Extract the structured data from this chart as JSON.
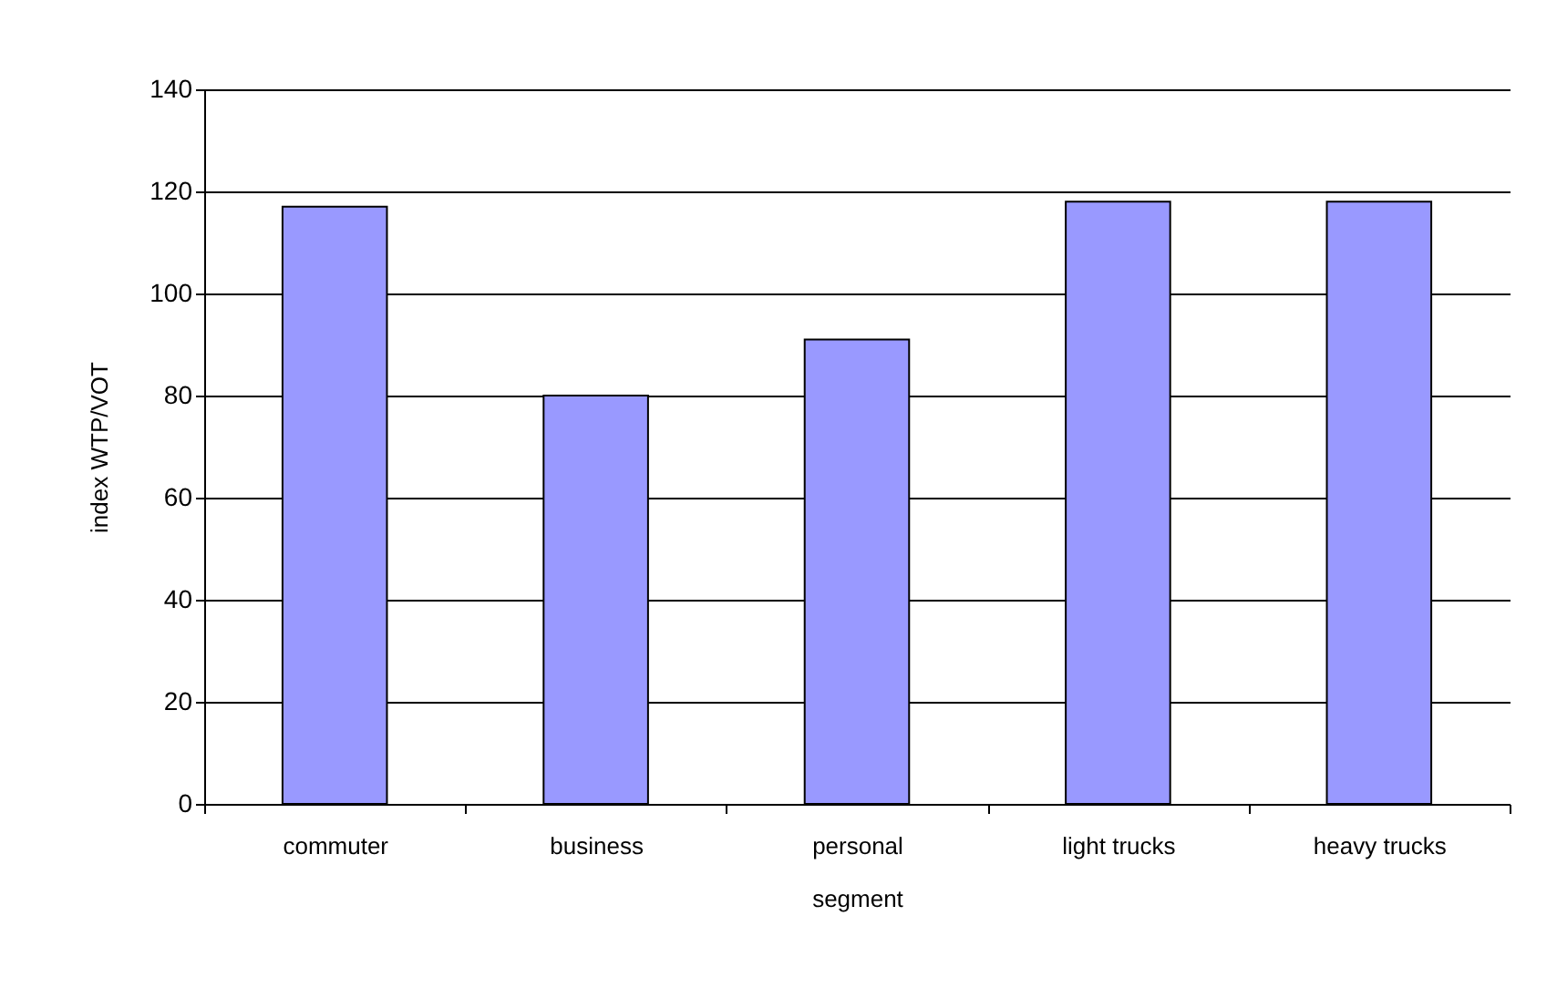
{
  "chart_data": {
    "type": "bar",
    "xlabel": "segment",
    "ylabel": "index WTP/VOT",
    "categories": [
      "commuter",
      "business",
      "personal",
      "light trucks",
      "heavy trucks"
    ],
    "values": [
      117,
      80,
      91,
      118,
      118
    ],
    "color": "#9999ff",
    "ylim": [
      0,
      140
    ],
    "yticks": [
      0,
      20,
      40,
      60,
      80,
      100,
      120,
      140
    ],
    "grid": "y"
  }
}
